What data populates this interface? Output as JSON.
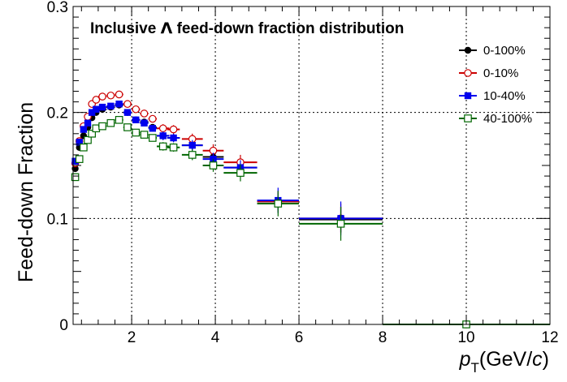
{
  "chart_data": {
    "type": "scatter",
    "title": "Inclusive Λ feed-down fraction distribution",
    "title_prefix": "Inclusive ",
    "title_symbol": "Λ",
    "title_suffix": " feed-down fraction distribution",
    "xlabel_var": "p",
    "xlabel_sub": "T",
    "xlabel_unit_open": "(GeV/",
    "xlabel_unit_c": "c",
    "xlabel_unit_close": ")",
    "ylabel": "Feed-down Fraction",
    "xlim": [
      0.6,
      12
    ],
    "ylim": [
      0,
      0.3
    ],
    "x_ticks": [
      2,
      4,
      6,
      8,
      10,
      12
    ],
    "y_ticks": [
      0,
      0.1,
      0.2,
      0.3
    ],
    "y_tick_labels": [
      "0",
      "0.1",
      "0.2",
      "0.3"
    ],
    "grid": true,
    "legend_position": "top-right",
    "series": [
      {
        "name": "0-100%",
        "color": "#000000",
        "marker": "filled-circle",
        "points": [
          {
            "x": 0.65,
            "y": 0.147,
            "xerr": 0.05,
            "yerr": 0.003
          },
          {
            "x": 0.75,
            "y": 0.167,
            "xerr": 0.05,
            "yerr": 0.003
          },
          {
            "x": 0.85,
            "y": 0.178,
            "xerr": 0.05,
            "yerr": 0.003
          },
          {
            "x": 0.95,
            "y": 0.186,
            "xerr": 0.05,
            "yerr": 0.003
          },
          {
            "x": 1.05,
            "y": 0.195,
            "xerr": 0.05,
            "yerr": 0.003
          },
          {
            "x": 1.15,
            "y": 0.2,
            "xerr": 0.05,
            "yerr": 0.003
          },
          {
            "x": 1.3,
            "y": 0.203,
            "xerr": 0.1,
            "yerr": 0.003
          },
          {
            "x": 1.5,
            "y": 0.205,
            "xerr": 0.1,
            "yerr": 0.003
          },
          {
            "x": 1.7,
            "y": 0.207,
            "xerr": 0.1,
            "yerr": 0.003
          },
          {
            "x": 1.9,
            "y": 0.2,
            "xerr": 0.1,
            "yerr": 0.003
          },
          {
            "x": 2.1,
            "y": 0.193,
            "xerr": 0.1,
            "yerr": 0.003
          },
          {
            "x": 2.3,
            "y": 0.191,
            "xerr": 0.1,
            "yerr": 0.003
          },
          {
            "x": 2.5,
            "y": 0.186,
            "xerr": 0.1,
            "yerr": 0.003
          },
          {
            "x": 2.75,
            "y": 0.178,
            "xerr": 0.15,
            "yerr": 0.004
          },
          {
            "x": 3.0,
            "y": 0.176,
            "xerr": 0.15,
            "yerr": 0.004
          },
          {
            "x": 3.45,
            "y": 0.169,
            "xerr": 0.25,
            "yerr": 0.004
          },
          {
            "x": 3.95,
            "y": 0.158,
            "xerr": 0.25,
            "yerr": 0.005
          },
          {
            "x": 4.6,
            "y": 0.148,
            "xerr": 0.4,
            "yerr": 0.006
          },
          {
            "x": 5.5,
            "y": 0.116,
            "xerr": 0.5,
            "yerr": 0.008
          },
          {
            "x": 7.0,
            "y": 0.099,
            "xerr": 1.0,
            "yerr": 0.012
          },
          {
            "x": 10.0,
            "y": 0.0,
            "xerr": 2.0,
            "yerr": 0
          }
        ]
      },
      {
        "name": "0-10%",
        "color": "#cc0000",
        "marker": "open-circle",
        "points": [
          {
            "x": 0.65,
            "y": 0.152,
            "xerr": 0.05,
            "yerr": 0.003
          },
          {
            "x": 0.75,
            "y": 0.173,
            "xerr": 0.05,
            "yerr": 0.003
          },
          {
            "x": 0.85,
            "y": 0.187,
            "xerr": 0.05,
            "yerr": 0.003
          },
          {
            "x": 0.95,
            "y": 0.196,
            "xerr": 0.05,
            "yerr": 0.003
          },
          {
            "x": 1.05,
            "y": 0.208,
            "xerr": 0.05,
            "yerr": 0.003
          },
          {
            "x": 1.15,
            "y": 0.212,
            "xerr": 0.05,
            "yerr": 0.003
          },
          {
            "x": 1.3,
            "y": 0.215,
            "xerr": 0.1,
            "yerr": 0.003
          },
          {
            "x": 1.5,
            "y": 0.216,
            "xerr": 0.1,
            "yerr": 0.003
          },
          {
            "x": 1.7,
            "y": 0.217,
            "xerr": 0.1,
            "yerr": 0.003
          },
          {
            "x": 1.9,
            "y": 0.208,
            "xerr": 0.1,
            "yerr": 0.003
          },
          {
            "x": 2.1,
            "y": 0.203,
            "xerr": 0.1,
            "yerr": 0.003
          },
          {
            "x": 2.3,
            "y": 0.199,
            "xerr": 0.1,
            "yerr": 0.003
          },
          {
            "x": 2.5,
            "y": 0.194,
            "xerr": 0.1,
            "yerr": 0.003
          },
          {
            "x": 2.75,
            "y": 0.185,
            "xerr": 0.15,
            "yerr": 0.004
          },
          {
            "x": 3.0,
            "y": 0.184,
            "xerr": 0.15,
            "yerr": 0.004
          },
          {
            "x": 3.45,
            "y": 0.175,
            "xerr": 0.25,
            "yerr": 0.005
          },
          {
            "x": 3.95,
            "y": 0.164,
            "xerr": 0.25,
            "yerr": 0.006
          },
          {
            "x": 4.6,
            "y": 0.153,
            "xerr": 0.4,
            "yerr": 0.007
          },
          {
            "x": 5.5,
            "y": 0.116,
            "xerr": 0.5,
            "yerr": 0.01
          },
          {
            "x": 7.0,
            "y": 0.1,
            "xerr": 1.0,
            "yerr": 0.014
          },
          {
            "x": 10.0,
            "y": 0.0,
            "xerr": 2.0,
            "yerr": 0
          }
        ]
      },
      {
        "name": "10-40%",
        "color": "#0000ee",
        "marker": "filled-square",
        "points": [
          {
            "x": 0.65,
            "y": 0.154,
            "xerr": 0.05,
            "yerr": 0.003
          },
          {
            "x": 0.75,
            "y": 0.172,
            "xerr": 0.05,
            "yerr": 0.003
          },
          {
            "x": 0.85,
            "y": 0.184,
            "xerr": 0.05,
            "yerr": 0.003
          },
          {
            "x": 0.95,
            "y": 0.19,
            "xerr": 0.05,
            "yerr": 0.003
          },
          {
            "x": 1.05,
            "y": 0.2,
            "xerr": 0.05,
            "yerr": 0.003
          },
          {
            "x": 1.15,
            "y": 0.203,
            "xerr": 0.05,
            "yerr": 0.003
          },
          {
            "x": 1.3,
            "y": 0.205,
            "xerr": 0.1,
            "yerr": 0.003
          },
          {
            "x": 1.5,
            "y": 0.206,
            "xerr": 0.1,
            "yerr": 0.003
          },
          {
            "x": 1.7,
            "y": 0.208,
            "xerr": 0.1,
            "yerr": 0.003
          },
          {
            "x": 1.9,
            "y": 0.2,
            "xerr": 0.1,
            "yerr": 0.003
          },
          {
            "x": 2.1,
            "y": 0.193,
            "xerr": 0.1,
            "yerr": 0.003
          },
          {
            "x": 2.3,
            "y": 0.19,
            "xerr": 0.1,
            "yerr": 0.003
          },
          {
            "x": 2.5,
            "y": 0.185,
            "xerr": 0.1,
            "yerr": 0.003
          },
          {
            "x": 2.75,
            "y": 0.178,
            "xerr": 0.15,
            "yerr": 0.004
          },
          {
            "x": 3.0,
            "y": 0.176,
            "xerr": 0.15,
            "yerr": 0.004
          },
          {
            "x": 3.45,
            "y": 0.169,
            "xerr": 0.25,
            "yerr": 0.005
          },
          {
            "x": 3.95,
            "y": 0.156,
            "xerr": 0.25,
            "yerr": 0.006
          },
          {
            "x": 4.6,
            "y": 0.148,
            "xerr": 0.4,
            "yerr": 0.007
          },
          {
            "x": 5.5,
            "y": 0.117,
            "xerr": 0.5,
            "yerr": 0.012
          },
          {
            "x": 7.0,
            "y": 0.1,
            "xerr": 1.0,
            "yerr": 0.016
          },
          {
            "x": 10.0,
            "y": 0.0,
            "xerr": 2.0,
            "yerr": 0
          }
        ]
      },
      {
        "name": "40-100%",
        "color": "#006600",
        "marker": "open-square",
        "points": [
          {
            "x": 0.65,
            "y": 0.139,
            "xerr": 0.05,
            "yerr": 0.003
          },
          {
            "x": 0.75,
            "y": 0.156,
            "xerr": 0.05,
            "yerr": 0.003
          },
          {
            "x": 0.85,
            "y": 0.167,
            "xerr": 0.05,
            "yerr": 0.003
          },
          {
            "x": 0.95,
            "y": 0.174,
            "xerr": 0.05,
            "yerr": 0.003
          },
          {
            "x": 1.05,
            "y": 0.18,
            "xerr": 0.05,
            "yerr": 0.003
          },
          {
            "x": 1.15,
            "y": 0.185,
            "xerr": 0.05,
            "yerr": 0.003
          },
          {
            "x": 1.3,
            "y": 0.187,
            "xerr": 0.1,
            "yerr": 0.003
          },
          {
            "x": 1.5,
            "y": 0.19,
            "xerr": 0.1,
            "yerr": 0.003
          },
          {
            "x": 1.7,
            "y": 0.193,
            "xerr": 0.1,
            "yerr": 0.003
          },
          {
            "x": 1.9,
            "y": 0.186,
            "xerr": 0.1,
            "yerr": 0.003
          },
          {
            "x": 2.1,
            "y": 0.181,
            "xerr": 0.1,
            "yerr": 0.003
          },
          {
            "x": 2.3,
            "y": 0.179,
            "xerr": 0.1,
            "yerr": 0.003
          },
          {
            "x": 2.5,
            "y": 0.176,
            "xerr": 0.1,
            "yerr": 0.003
          },
          {
            "x": 2.75,
            "y": 0.168,
            "xerr": 0.15,
            "yerr": 0.004
          },
          {
            "x": 3.0,
            "y": 0.167,
            "xerr": 0.15,
            "yerr": 0.004
          },
          {
            "x": 3.45,
            "y": 0.16,
            "xerr": 0.25,
            "yerr": 0.005
          },
          {
            "x": 3.95,
            "y": 0.15,
            "xerr": 0.25,
            "yerr": 0.006
          },
          {
            "x": 4.6,
            "y": 0.143,
            "xerr": 0.4,
            "yerr": 0.008
          },
          {
            "x": 5.5,
            "y": 0.114,
            "xerr": 0.5,
            "yerr": 0.012
          },
          {
            "x": 7.0,
            "y": 0.095,
            "xerr": 1.0,
            "yerr": 0.016
          },
          {
            "x": 10.0,
            "y": 0.0,
            "xerr": 2.0,
            "yerr": 0
          }
        ]
      }
    ]
  }
}
